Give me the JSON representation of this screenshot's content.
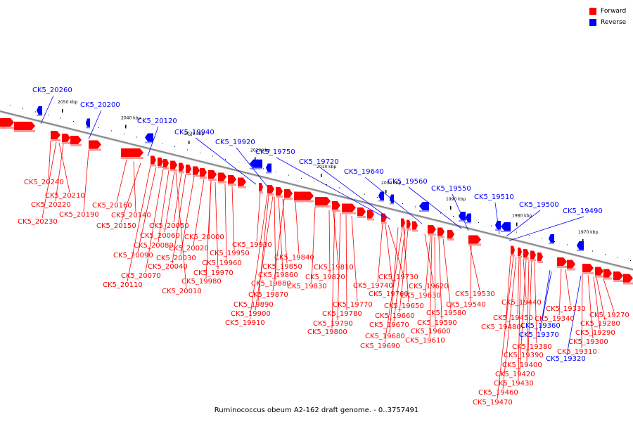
{
  "legend": {
    "forward": {
      "label": "Forward",
      "color": "#ff0000"
    },
    "reverse": {
      "label": "Reverse",
      "color": "#0000ff"
    }
  },
  "caption": "Ruminococcus obeum A2-162 draft genome. - 0..3757491",
  "scale_labels": [
    "2050 kbp",
    "2040 kbp",
    "2030 kbp",
    "2020 kbp",
    "2010 kbp",
    "2000 kbp",
    "1990 kbp",
    "1980 kbp",
    "1970 kbp"
  ],
  "genes_reverse": [
    "CK5_20260",
    "CK5_20200",
    "CK5_20120",
    "CK5_19940",
    "CK5_19920",
    "CK5_19750",
    "CK5_19720",
    "CK5_19640",
    "CK5_19560",
    "CK5_19550",
    "CK5_19510",
    "CK5_19500",
    "CK5_19490",
    "CK5_19360",
    "CK5_19370",
    "CK5_19320"
  ],
  "genes_forward": [
    "CK5_20240",
    "CK5_20210",
    "CK5_20220",
    "CK5_20190",
    "CK5_20230",
    "CK5_20160",
    "CK5_20140",
    "CK5_20150",
    "CK5_20050",
    "CK5_20060",
    "CK5_20000",
    "CK5_20080",
    "CK5_20020",
    "CK5_20090",
    "CK5_20030",
    "CK5_19950",
    "CK5_20040",
    "CK5_19960",
    "CK5_20070",
    "CK5_19970",
    "CK5_20110",
    "CK5_19980",
    "CK5_20010",
    "CK5_19930",
    "CK5_19840",
    "CK5_19850",
    "CK5_19860",
    "CK5_19880",
    "CK5_19870",
    "CK5_19890",
    "CK5_19900",
    "CK5_19910",
    "CK5_19810",
    "CK5_19820",
    "CK5_19830",
    "CK5_19730",
    "CK5_19740",
    "CK5_19760",
    "CK5_19770",
    "CK5_19780",
    "CK5_19790",
    "CK5_19800",
    "CK5_19620",
    "CK5_19630",
    "CK5_19650",
    "CK5_19660",
    "CK5_19670",
    "CK5_19580",
    "CK5_19590",
    "CK5_19600",
    "CK5_19680",
    "CK5_19610",
    "CK5_19690",
    "CK5_19530",
    "CK5_19540",
    "CK5_19440",
    "CK5_19450",
    "CK5_19480",
    "CK5_19330",
    "CK5_19340",
    "CK5_19270",
    "CK5_19280",
    "CK5_19290",
    "CK5_19300",
    "CK5_19310",
    "CK5_19380",
    "CK5_19390",
    "CK5_19400",
    "CK5_19420",
    "CK5_19430",
    "CK5_19460",
    "CK5_19470"
  ]
}
